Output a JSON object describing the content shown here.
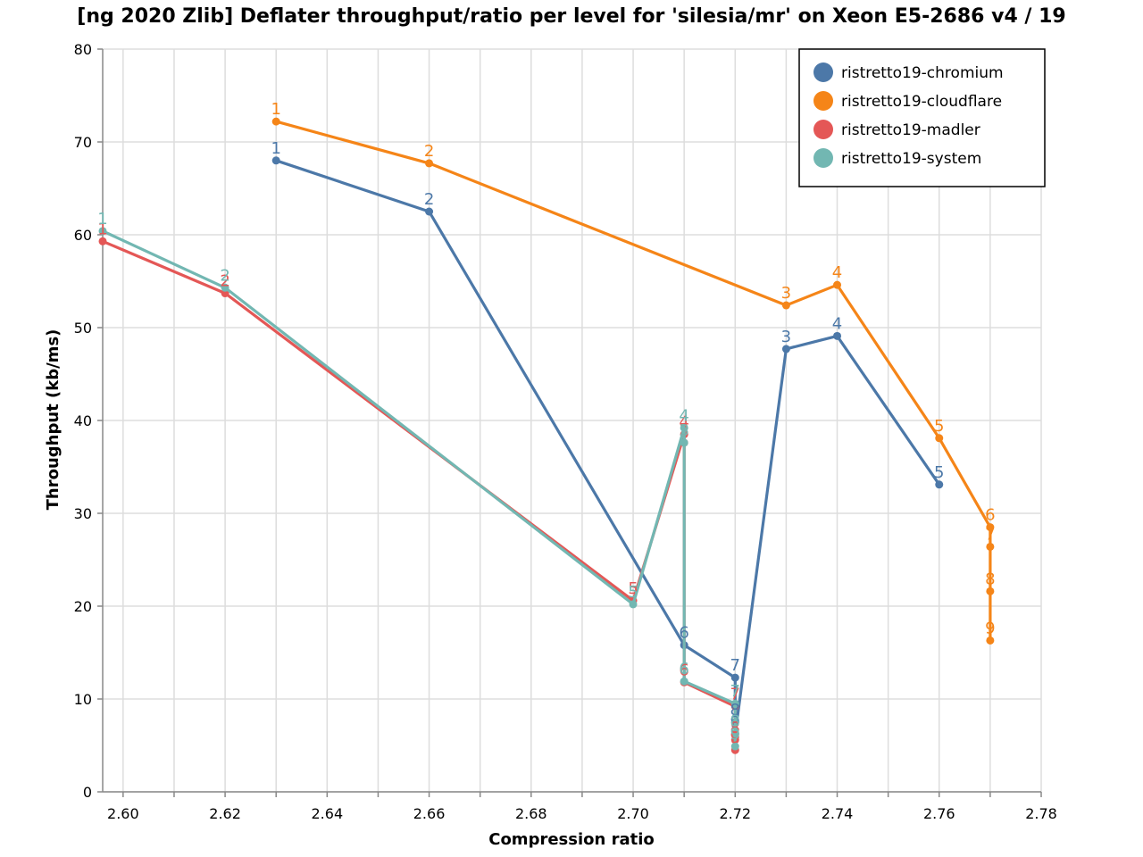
{
  "chart_data": {
    "type": "line",
    "title": "[ng 2020 Zlib] Deflater throughput/ratio per level for 'silesia/mr' on Xeon E5-2686 v4 / 19",
    "xlabel": "Compression ratio",
    "ylabel": "Throughput (kb/ms)",
    "xlim": [
      2.596,
      2.78
    ],
    "ylim": [
      0,
      80
    ],
    "xticks": [
      2.6,
      2.62,
      2.64,
      2.66,
      2.68,
      2.7,
      2.72,
      2.74,
      2.76,
      2.78
    ],
    "yticks": [
      0,
      10,
      20,
      30,
      40,
      50,
      60,
      70,
      80
    ],
    "grid": true,
    "legend_position": "top-right",
    "series": [
      {
        "name": "ristretto19-chromium",
        "color": "#4c78a8",
        "points": [
          {
            "level": "1",
            "x": 2.63,
            "y": 68.0
          },
          {
            "level": "2",
            "x": 2.66,
            "y": 62.5
          },
          {
            "level": "6",
            "x": 2.71,
            "y": 15.8
          },
          {
            "level": "7",
            "x": 2.72,
            "y": 12.3
          },
          {
            "level": "8",
            "x": 2.72,
            "y": 7.5
          },
          {
            "level": "9",
            "x": 2.72,
            "y": 6.2
          },
          {
            "level": "3",
            "x": 2.73,
            "y": 47.7
          },
          {
            "level": "4",
            "x": 2.74,
            "y": 49.1
          },
          {
            "level": "5",
            "x": 2.76,
            "y": 33.1
          }
        ]
      },
      {
        "name": "ristretto19-cloudflare",
        "color": "#f58518",
        "points": [
          {
            "level": "1",
            "x": 2.63,
            "y": 72.2
          },
          {
            "level": "2",
            "x": 2.66,
            "y": 67.7
          },
          {
            "level": "3",
            "x": 2.73,
            "y": 52.4
          },
          {
            "level": "4",
            "x": 2.74,
            "y": 54.6
          },
          {
            "level": "5",
            "x": 2.76,
            "y": 38.1
          },
          {
            "level": "6",
            "x": 2.77,
            "y": 28.5
          },
          {
            "level": "7",
            "x": 2.77,
            "y": 26.4
          },
          {
            "level": "8",
            "x": 2.77,
            "y": 21.6
          },
          {
            "level": "9",
            "x": 2.77,
            "y": 16.3
          }
        ]
      },
      {
        "name": "ristretto19-madler",
        "color": "#e45756",
        "points": [
          {
            "level": "1",
            "x": 2.596,
            "y": 59.3
          },
          {
            "level": "2",
            "x": 2.62,
            "y": 53.7
          },
          {
            "level": "5",
            "x": 2.7,
            "y": 20.6
          },
          {
            "level": "4",
            "x": 2.71,
            "y": 38.5
          },
          {
            "level": "3",
            "x": 2.71,
            "y": 37.6
          },
          {
            "level": "6",
            "x": 2.71,
            "y": 11.8
          },
          {
            "level": "7",
            "x": 2.72,
            "y": 9.2
          },
          {
            "level": "8",
            "x": 2.72,
            "y": 5.6
          },
          {
            "level": "9",
            "x": 2.72,
            "y": 4.5
          }
        ]
      },
      {
        "name": "ristretto19-system",
        "color": "#72b7b2",
        "points": [
          {
            "level": "1",
            "x": 2.596,
            "y": 60.4
          },
          {
            "level": "2",
            "x": 2.62,
            "y": 54.3
          },
          {
            "level": "5",
            "x": 2.7,
            "y": 20.2
          },
          {
            "level": "4",
            "x": 2.71,
            "y": 39.2
          },
          {
            "level": "3",
            "x": 2.71,
            "y": 37.6
          },
          {
            "level": "6",
            "x": 2.71,
            "y": 11.9
          },
          {
            "level": "7",
            "x": 2.72,
            "y": 9.5
          },
          {
            "level": "8",
            "x": 2.72,
            "y": 6.3
          },
          {
            "level": "9",
            "x": 2.72,
            "y": 4.9
          }
        ]
      }
    ]
  }
}
